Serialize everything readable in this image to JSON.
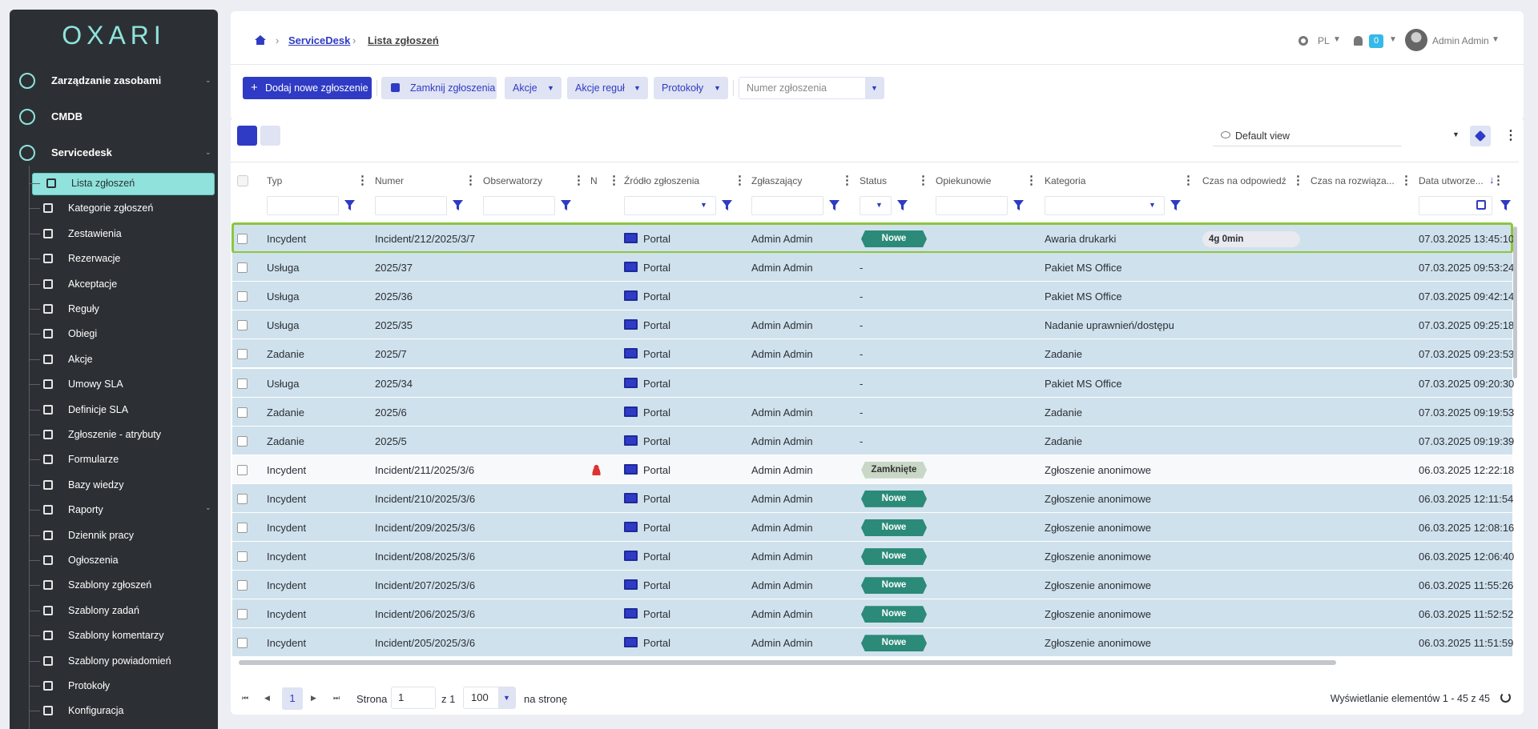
{
  "logo": "OXARI",
  "sidebar": {
    "sections": [
      "Zarządzanie zasobami",
      "CMDB",
      "Servicedesk"
    ],
    "items": [
      "Lista zgłoszeń",
      "Kategorie zgłoszeń",
      "Zestawienia",
      "Rezerwacje",
      "Akceptacje",
      "Reguły",
      "Obiegi",
      "Akcje",
      "Umowy SLA",
      "Definicje SLA",
      "Zgłoszenie - atrybuty",
      "Formularze",
      "Bazy wiedzy",
      "Raporty",
      "Dziennik pracy",
      "Ogłoszenia",
      "Szablony zgłoszeń",
      "Szablony zadań",
      "Szablony komentarzy",
      "Szablony powiadomień",
      "Protokoły",
      "Konfiguracja"
    ],
    "active_item": 0
  },
  "breadcrumb": [
    "ServiceDesk",
    "Lista zgłoszeń"
  ],
  "topbar": {
    "language": "PL",
    "notifications": "0",
    "user": "Admin Admin"
  },
  "toolbar": {
    "add": "Dodaj nowe zgłoszenie",
    "close": "Zamknij zgłoszenia",
    "actions": "Akcje",
    "rule_actions": "Akcje reguł",
    "protocols": "Protokoły",
    "search_placeholder": "Numer zgłoszenia"
  },
  "view": "Default view",
  "table": {
    "columns": [
      "Typ",
      "Numer",
      "Obserwatorzy",
      "N",
      "Źródło zgłoszenia",
      "Zgłaszający",
      "Status",
      "Opiekunowie",
      "Kategoria",
      "Czas na odpowiedź",
      "Czas na rozwiąza...",
      "Data utworze..."
    ],
    "status_colors": {
      "Nowe": "#2b8a78",
      "Zamknięte": "#c9d7c6"
    },
    "rows": [
      {
        "typ": "Incydent",
        "numer": "Incident/212/2025/3/7",
        "zrodlo": "Portal",
        "zglaszajacy": "Admin Admin",
        "status": "Nowe",
        "kategoria": "Awaria drukarki",
        "czas": "4g 0min",
        "data": "07.03.2025 13:45:10",
        "selected": true,
        "focused": true
      },
      {
        "typ": "Usługa",
        "numer": "2025/37",
        "zrodlo": "Portal",
        "zglaszajacy": "Admin Admin",
        "status": "-",
        "kategoria": "Pakiet MS Office",
        "data": "07.03.2025 09:53:24",
        "selected": true
      },
      {
        "typ": "Usługa",
        "numer": "2025/36",
        "zrodlo": "Portal",
        "status": "-",
        "kategoria": "Pakiet MS Office",
        "data": "07.03.2025 09:42:14",
        "selected": true
      },
      {
        "typ": "Usługa",
        "numer": "2025/35",
        "zrodlo": "Portal",
        "zglaszajacy": "Admin Admin",
        "status": "-",
        "kategoria": "Nadanie uprawnień/dostępu",
        "data": "07.03.2025 09:25:18",
        "selected": true
      },
      {
        "typ": "Zadanie",
        "numer": "2025/7",
        "zrodlo": "Portal",
        "zglaszajacy": "Admin Admin",
        "status": "-",
        "kategoria": "Zadanie",
        "data": "07.03.2025 09:23:53",
        "selected": true
      },
      {
        "typ": "Usługa",
        "numer": "2025/34",
        "zrodlo": "Portal",
        "status": "-",
        "kategoria": "Pakiet MS Office",
        "data": "07.03.2025 09:20:30",
        "selected": true
      },
      {
        "typ": "Zadanie",
        "numer": "2025/6",
        "zrodlo": "Portal",
        "zglaszajacy": "Admin Admin",
        "status": "-",
        "kategoria": "Zadanie",
        "data": "07.03.2025 09:19:53",
        "selected": true
      },
      {
        "typ": "Zadanie",
        "numer": "2025/5",
        "zrodlo": "Portal",
        "zglaszajacy": "Admin Admin",
        "status": "-",
        "kategoria": "Zadanie",
        "data": "07.03.2025 09:19:39",
        "selected": true
      },
      {
        "typ": "Incydent",
        "numer": "Incident/211/2025/3/6",
        "zrodlo": "Portal",
        "zglaszajacy": "Admin Admin",
        "status": "Zamknięte",
        "kategoria": "Zgłoszenie anonimowe",
        "data": "06.03.2025 12:22:18",
        "selected": false,
        "observer_icon": true
      },
      {
        "typ": "Incydent",
        "numer": "Incident/210/2025/3/6",
        "zrodlo": "Portal",
        "zglaszajacy": "Admin Admin",
        "status": "Nowe",
        "kategoria": "Zgłoszenie anonimowe",
        "data": "06.03.2025 12:11:54",
        "selected": true
      },
      {
        "typ": "Incydent",
        "numer": "Incident/209/2025/3/6",
        "zrodlo": "Portal",
        "zglaszajacy": "Admin Admin",
        "status": "Nowe",
        "kategoria": "Zgłoszenie anonimowe",
        "data": "06.03.2025 12:08:16",
        "selected": true
      },
      {
        "typ": "Incydent",
        "numer": "Incident/208/2025/3/6",
        "zrodlo": "Portal",
        "zglaszajacy": "Admin Admin",
        "status": "Nowe",
        "kategoria": "Zgłoszenie anonimowe",
        "data": "06.03.2025 12:06:40",
        "selected": true
      },
      {
        "typ": "Incydent",
        "numer": "Incident/207/2025/3/6",
        "zrodlo": "Portal",
        "zglaszajacy": "Admin Admin",
        "status": "Nowe",
        "kategoria": "Zgłoszenie anonimowe",
        "data": "06.03.2025 11:55:26",
        "selected": true
      },
      {
        "typ": "Incydent",
        "numer": "Incident/206/2025/3/6",
        "zrodlo": "Portal",
        "zglaszajacy": "Admin Admin",
        "status": "Nowe",
        "kategoria": "Zgłoszenie anonimowe",
        "data": "06.03.2025 11:52:52",
        "selected": true
      },
      {
        "typ": "Incydent",
        "numer": "Incident/205/2025/3/6",
        "zrodlo": "Portal",
        "zglaszajacy": "Admin Admin",
        "status": "Nowe",
        "kategoria": "Zgłoszenie anonimowe",
        "data": "06.03.2025 11:51:59",
        "selected": true
      }
    ]
  },
  "pager": {
    "page_label": "Strona",
    "page": "1",
    "of": "z 1",
    "page_size": "100",
    "per_page": "na stronę",
    "summary": "Wyświetlanie elementów 1 - 45 z 45"
  }
}
